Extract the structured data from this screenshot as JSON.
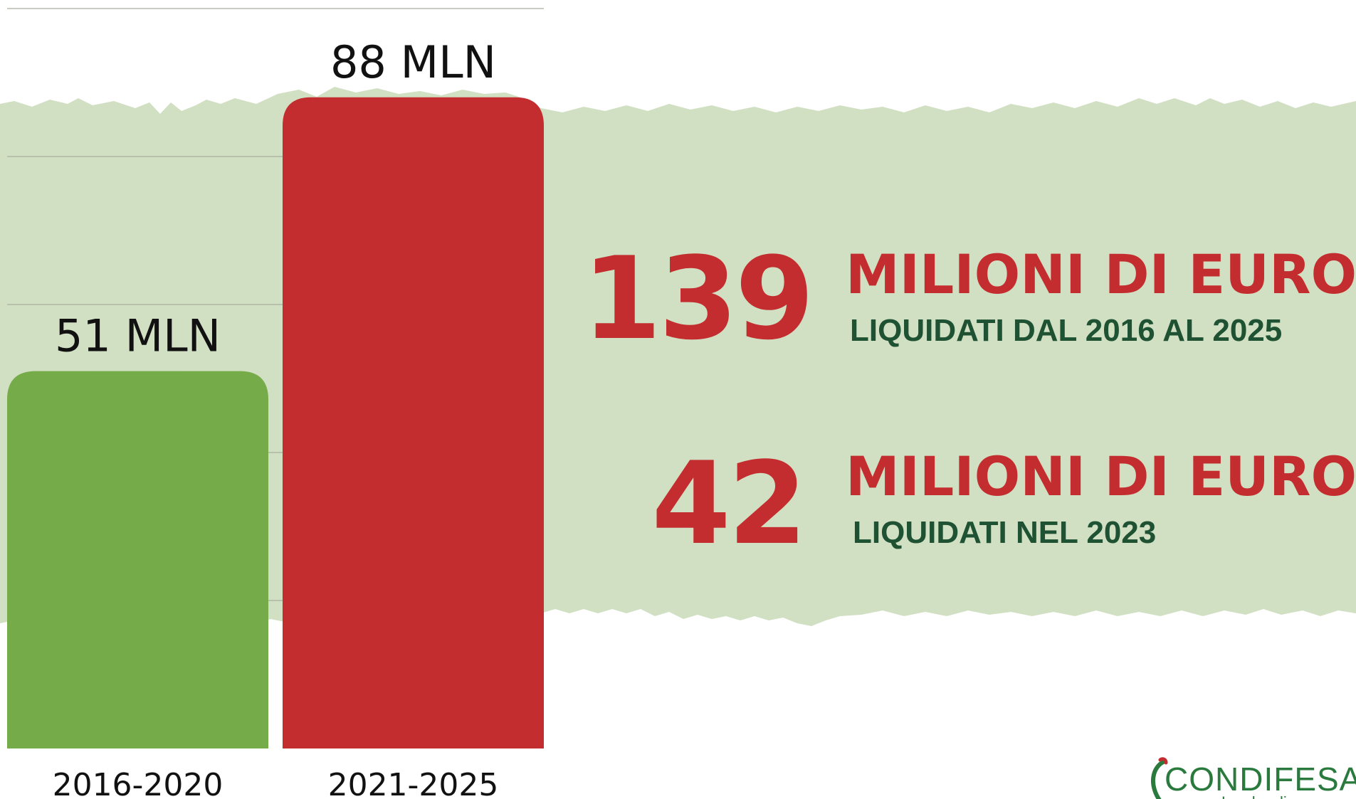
{
  "chart_data": {
    "type": "bar",
    "categories": [
      "2016-2020",
      "2021-2025"
    ],
    "values": [
      51,
      88
    ],
    "data_labels": [
      "51 MLN",
      "88 MLN"
    ],
    "ylim": [
      0,
      100
    ],
    "grid": true,
    "colors": [
      "#76ab4a",
      "#c42d2f"
    ]
  },
  "stats": [
    {
      "number": "139",
      "unit": "MILIONI DI EURO",
      "caption": "LIQUIDATI DAL 2016 AL 2025"
    },
    {
      "number": "42",
      "unit": "MILIONI DI EURO",
      "caption": "LIQUIDATI NEL 2023"
    }
  ],
  "logo": {
    "text": "CONDIFESA",
    "subtext": "Lombardia"
  },
  "colors": {
    "band": "#d1dfc2",
    "accent_red": "#c42d2f",
    "dark_green": "#1e5233",
    "bar_green": "#76ab4a"
  }
}
